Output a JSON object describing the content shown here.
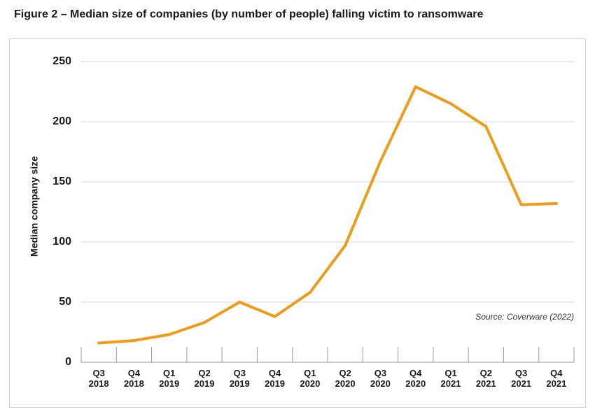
{
  "figure_title": "Figure 2 – Median size of companies (by number of people) falling victim to ransomware",
  "source_note": "Source: Coverware (2022)",
  "colors": {
    "line": "#F29A1A",
    "grid": "#d9d9d9",
    "axis": "#9a9a9a"
  },
  "chart_data": {
    "type": "line",
    "title": "Figure 2 – Median size of companies (by number of people) falling victim to ransomware",
    "xlabel": "",
    "ylabel": "Median company size",
    "ylim": [
      0,
      250
    ],
    "yticks": [
      0,
      50,
      100,
      150,
      200,
      250
    ],
    "grid": true,
    "categories": [
      {
        "q": "Q3",
        "y": "2018"
      },
      {
        "q": "Q4",
        "y": "2018"
      },
      {
        "q": "Q1",
        "y": "2019"
      },
      {
        "q": "Q2",
        "y": "2019"
      },
      {
        "q": "Q3",
        "y": "2019"
      },
      {
        "q": "Q4",
        "y": "2019"
      },
      {
        "q": "Q1",
        "y": "2020"
      },
      {
        "q": "Q2",
        "y": "2020"
      },
      {
        "q": "Q3",
        "y": "2020"
      },
      {
        "q": "Q4",
        "y": "2020"
      },
      {
        "q": "Q1",
        "y": "2021"
      },
      {
        "q": "Q2",
        "y": "2021"
      },
      {
        "q": "Q3",
        "y": "2021"
      },
      {
        "q": "Q4",
        "y": "2021"
      }
    ],
    "series": [
      {
        "name": "Median company size",
        "values": [
          16,
          18,
          23,
          33,
          50,
          38,
          58,
          97,
          167,
          229,
          215,
          196,
          131,
          132
        ]
      }
    ]
  }
}
